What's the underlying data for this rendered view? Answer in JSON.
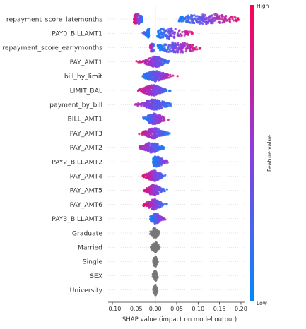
{
  "chart_data": {
    "type": "scatter",
    "subtype": "shap-beeswarm-summary",
    "xlabel": "SHAP value (impact on model output)",
    "xlim": [
      -0.11,
      0.21
    ],
    "xticks": [
      -0.1,
      -0.05,
      0.0,
      0.05,
      0.1,
      0.15,
      0.2
    ],
    "xtick_labels": [
      "−0.10",
      "−0.05",
      "0.00",
      "0.05",
      "0.10",
      "0.15",
      "0.20"
    ],
    "colorbar": {
      "label": "Feature value",
      "high": "High",
      "low": "Low",
      "color_low": "#008afb",
      "color_high": "#ff0052"
    },
    "neutral_color": "#777777",
    "features": [
      {
        "name": "repayment_score_latemonths",
        "clusters": [
          {
            "min": -0.05,
            "max": -0.03,
            "center": -0.042,
            "width": 0.0085,
            "count": 140,
            "trend": -1
          },
          {
            "min": 0.055,
            "max": 0.195,
            "center": 0.12,
            "width": 0.045,
            "count": 200,
            "trend": 1
          }
        ]
      },
      {
        "name": "PAY0_BILLAMT1",
        "clusters": [
          {
            "min": -0.055,
            "max": -0.015,
            "center": -0.012,
            "width": 0.006,
            "count": 120,
            "trend": -1
          },
          {
            "min": 0.005,
            "max": 0.09,
            "center": 0.03,
            "width": 0.028,
            "count": 120,
            "trend": 1
          }
        ]
      },
      {
        "name": "repayment_score_earlymonths",
        "clusters": [
          {
            "min": -0.012,
            "max": -0.003,
            "center": -0.007,
            "width": 0.003,
            "count": 50,
            "trend": -1
          },
          {
            "min": 0.005,
            "max": 0.105,
            "center": 0.05,
            "width": 0.03,
            "count": 170,
            "trend": 1
          }
        ]
      },
      {
        "name": "PAY_AMT1",
        "clusters": [
          {
            "min": -0.045,
            "max": 0.04,
            "center": 0.0,
            "width": 0.014,
            "count": 230,
            "trend": -1
          }
        ]
      },
      {
        "name": "bill_by_limit",
        "clusters": [
          {
            "min": -0.03,
            "max": 0.055,
            "center": 0.0,
            "width": 0.016,
            "count": 230,
            "trend": 1
          }
        ]
      },
      {
        "name": "LIMIT_BAL",
        "clusters": [
          {
            "min": -0.045,
            "max": 0.04,
            "center": -0.005,
            "width": 0.015,
            "count": 230,
            "trend": -1
          }
        ]
      },
      {
        "name": "payment_by_bill",
        "clusters": [
          {
            "min": -0.09,
            "max": 0.05,
            "center": -0.002,
            "width": 0.018,
            "count": 240,
            "trend": -1
          }
        ]
      },
      {
        "name": "BILL_AMT1",
        "clusters": [
          {
            "min": -0.03,
            "max": 0.04,
            "center": -0.002,
            "width": 0.013,
            "count": 200,
            "trend": 1
          }
        ]
      },
      {
        "name": "PAY_AMT3",
        "clusters": [
          {
            "min": -0.04,
            "max": 0.035,
            "center": -0.003,
            "width": 0.013,
            "count": 200,
            "trend": -1
          }
        ]
      },
      {
        "name": "PAY_AMT2",
        "clusters": [
          {
            "min": -0.055,
            "max": 0.02,
            "center": -0.008,
            "width": 0.013,
            "count": 200,
            "trend": -1
          }
        ]
      },
      {
        "name": "PAY2_BILLAMT2",
        "clusters": [
          {
            "min": -0.005,
            "max": 0.05,
            "center": 0.003,
            "width": 0.011,
            "count": 160,
            "trend": 1
          }
        ]
      },
      {
        "name": "PAY_AMT4",
        "clusters": [
          {
            "min": -0.03,
            "max": 0.03,
            "center": -0.003,
            "width": 0.011,
            "count": 180,
            "trend": -1
          }
        ]
      },
      {
        "name": "PAY_AMT5",
        "clusters": [
          {
            "min": -0.028,
            "max": 0.03,
            "center": -0.003,
            "width": 0.011,
            "count": 180,
            "trend": -1
          }
        ]
      },
      {
        "name": "PAY_AMT6",
        "clusters": [
          {
            "min": -0.028,
            "max": 0.028,
            "center": -0.003,
            "width": 0.011,
            "count": 180,
            "trend": -1
          }
        ]
      },
      {
        "name": "PAY3_BILLAMT3",
        "clusters": [
          {
            "min": -0.012,
            "max": 0.035,
            "center": 0.001,
            "width": 0.008,
            "count": 130,
            "trend": 1
          }
        ]
      },
      {
        "name": "Graduate",
        "clusters": [
          {
            "min": -0.012,
            "max": 0.008,
            "center": -0.001,
            "width": 0.005,
            "count": 90,
            "trend": 0
          }
        ]
      },
      {
        "name": "Married",
        "clusters": [
          {
            "min": -0.01,
            "max": 0.01,
            "center": 0.0,
            "width": 0.005,
            "count": 90,
            "trend": 0
          }
        ]
      },
      {
        "name": "Single",
        "clusters": [
          {
            "min": -0.006,
            "max": 0.006,
            "center": 0.0,
            "width": 0.003,
            "count": 70,
            "trend": 0
          }
        ]
      },
      {
        "name": "SEX",
        "clusters": [
          {
            "min": -0.006,
            "max": 0.006,
            "center": 0.0,
            "width": 0.003,
            "count": 70,
            "trend": 0
          }
        ]
      },
      {
        "name": "University",
        "clusters": [
          {
            "min": -0.005,
            "max": 0.005,
            "center": 0.0,
            "width": 0.0025,
            "count": 60,
            "trend": 0
          }
        ]
      }
    ]
  }
}
